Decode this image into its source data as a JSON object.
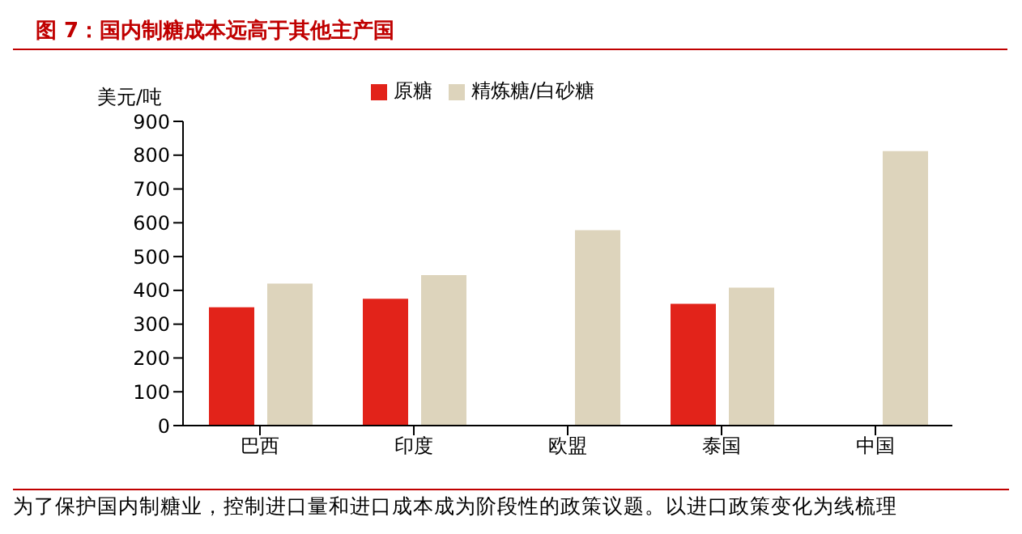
{
  "chart_data": {
    "type": "bar",
    "title": "图 7：国内制糖成本远高于其他主产国",
    "ylabel": "美元/吨",
    "categories": [
      "巴西",
      "印度",
      "欧盟",
      "泰国",
      "中国"
    ],
    "series": [
      {
        "name": "原糖",
        "color": "#e2231a",
        "values": [
          350,
          375,
          null,
          360,
          null
        ]
      },
      {
        "name": "精炼糖/白砂糖",
        "color": "#ddd4bc",
        "values": [
          420,
          445,
          578,
          408,
          812
        ]
      }
    ],
    "ylim": [
      0,
      900
    ],
    "yticks": [
      0,
      100,
      200,
      300,
      400,
      500,
      600,
      700,
      800,
      900
    ],
    "grid": false,
    "legend": "top",
    "annotations": [
      "为了保护国内制糖业，控制进口量和进口成本成为阶段性的政策议题。以进口政策变化为线梳理"
    ]
  }
}
